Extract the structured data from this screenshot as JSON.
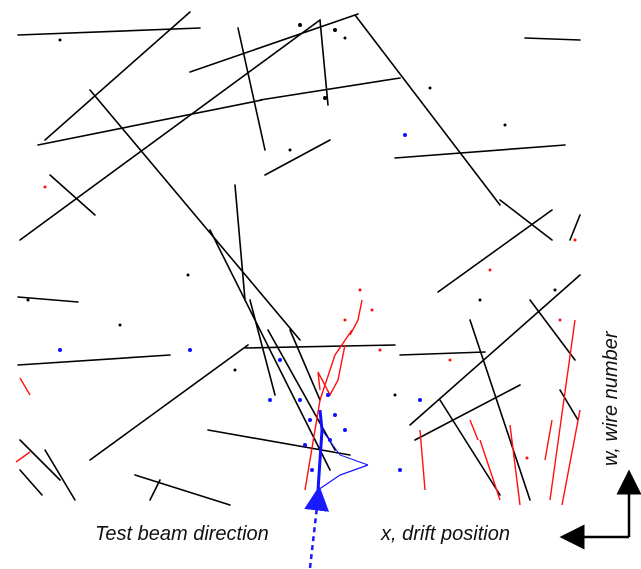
{
  "figure": {
    "beam_label": "Test beam direction",
    "x_axis_label": "x, drift position",
    "w_axis_label": "w, wire number"
  },
  "colors": {
    "tracks": "#000000",
    "beam_particle_hits": "#1010ff",
    "secondary_hits": "#ff1010",
    "beam_arrow": "#1a1aff",
    "axis_arrows": "#000000"
  },
  "legend_icons": [
    "dashed-beam-arrow-icon",
    "x-axis-arrow-icon",
    "w-axis-arrow-icon"
  ]
}
